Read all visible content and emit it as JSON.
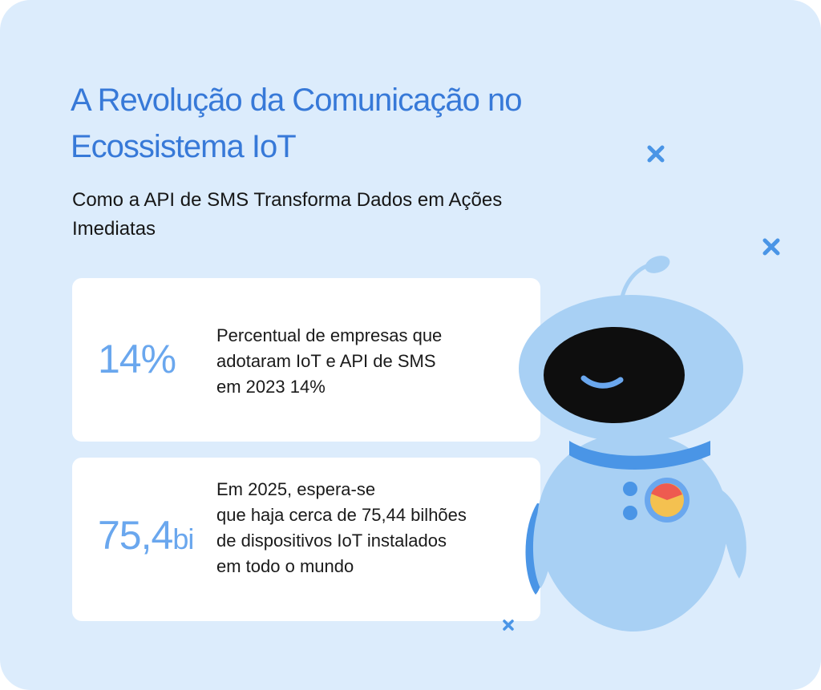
{
  "title": "A Revolução da Comunicação no Ecossistema IoT",
  "subtitle": "Como a API de SMS Transforma Dados em Ações Imediatas",
  "cards": [
    {
      "stat_value": "14%",
      "stat_unit": "",
      "lines": [
        "Percentual de empresas que",
        "adotaram IoT e API de SMS",
        "em 2023 14%"
      ]
    },
    {
      "stat_value": "75,4",
      "stat_unit": "bi",
      "lines": [
        "Em 2025, espera-se",
        "que haja cerca de 75,44 bilhões",
        "de dispositivos IoT instalados",
        "em todo o mundo"
      ]
    }
  ],
  "colors": {
    "background": "#dcecfc",
    "title": "#3779d8",
    "stat": "#6aa7ee",
    "robot_body": "#a8d0f4",
    "robot_accent": "#4a95e6"
  },
  "icons": [
    "cross-sparkle-icon",
    "robot-illustration"
  ]
}
